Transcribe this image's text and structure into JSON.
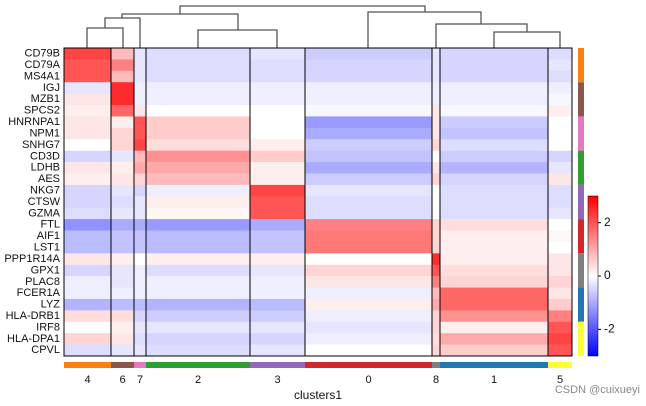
{
  "chart_data": {
    "type": "heatmap",
    "xlabel": "clusters1",
    "watermark": "CSDN @cuixueyi",
    "categories": [
      "4",
      "6",
      "7",
      "2",
      "3",
      "0",
      "8",
      "1",
      "5"
    ],
    "category_colors": [
      "#ff7f0e",
      "#8c564b",
      "#e377c2",
      "#2ca02c",
      "#9467bd",
      "#d62728",
      "#7f7f7f",
      "#1f77b4",
      "#ffff33"
    ],
    "cell_counts": [
      47,
      23,
      12,
      104,
      55,
      127,
      8,
      108,
      24
    ],
    "rows": [
      "CD79B",
      "CD79A",
      "MS4A1",
      "IGJ",
      "MZB1",
      "SPCS2",
      "HNRNPA1",
      "NPM1",
      "SNHG7",
      "CD3D",
      "LDHB",
      "AES",
      "NKG7",
      "CTSW",
      "GZMA",
      "FTL",
      "AIF1",
      "LST1",
      "PPP1R14A",
      "GPX1",
      "PLAC8",
      "FCER1A",
      "LYZ",
      "HLA-DRB1",
      "IRF8",
      "HLA-DPA1",
      "CPVL"
    ],
    "values": [
      [
        2.2,
        0.8,
        -0.3,
        -0.4,
        -0.3,
        -0.6,
        -0.3,
        -0.5,
        -0.4
      ],
      [
        2.0,
        1.5,
        -0.3,
        -0.4,
        -0.4,
        -0.5,
        -0.3,
        -0.5,
        -0.3
      ],
      [
        2.0,
        0.8,
        -0.3,
        -0.4,
        -0.4,
        -0.5,
        -0.3,
        -0.5,
        -0.4
      ],
      [
        -0.3,
        2.5,
        -0.2,
        -0.2,
        -0.2,
        -0.2,
        -0.2,
        -0.2,
        -0.2
      ],
      [
        0.3,
        2.5,
        -0.2,
        -0.2,
        -0.2,
        -0.2,
        -0.2,
        -0.2,
        -0.1
      ],
      [
        0.2,
        1.8,
        0.3,
        0,
        0,
        -0.1,
        0.3,
        -0.1,
        0.2
      ],
      [
        0.3,
        0.2,
        2.0,
        0.6,
        0,
        -1.2,
        0.3,
        -0.6,
        0
      ],
      [
        0.3,
        0.5,
        2.0,
        0.6,
        0,
        -1.0,
        0.3,
        -0.7,
        0
      ],
      [
        0,
        0.5,
        2.2,
        0.4,
        0.2,
        -0.6,
        0.5,
        -0.4,
        0
      ],
      [
        -0.5,
        -0.3,
        0.8,
        1.3,
        0.6,
        -0.7,
        0,
        -0.6,
        -0.5
      ],
      [
        0.3,
        0.2,
        1.0,
        1.0,
        0.2,
        -1.0,
        0.3,
        -0.9,
        -0.3
      ],
      [
        0.2,
        0.3,
        0.5,
        0.8,
        0.2,
        -0.6,
        0.5,
        -0.5,
        0.3
      ],
      [
        -0.5,
        -0.3,
        -0.5,
        -0.2,
        2.2,
        -0.3,
        0,
        -0.4,
        -0.4
      ],
      [
        -0.5,
        -0.4,
        -0.3,
        0.2,
        2.0,
        -0.4,
        0,
        -0.4,
        -0.4
      ],
      [
        -0.4,
        -0.3,
        -0.3,
        0.1,
        2.0,
        -0.4,
        0,
        -0.4,
        -0.3
      ],
      [
        -1.3,
        -1.0,
        -1.0,
        -1.2,
        -1.0,
        1.5,
        0.5,
        0.4,
        0
      ],
      [
        -0.8,
        -0.7,
        -0.7,
        -0.8,
        -0.7,
        1.6,
        0.5,
        0.2,
        0.1
      ],
      [
        -0.8,
        -0.7,
        -0.7,
        -0.8,
        -0.7,
        1.6,
        0.5,
        0.2,
        0
      ],
      [
        0.3,
        0.2,
        0,
        0.2,
        0.2,
        0,
        2.5,
        0.2,
        0.3
      ],
      [
        -0.5,
        -0.3,
        -0.2,
        -0.4,
        -0.3,
        0.5,
        2.0,
        0.4,
        0.3
      ],
      [
        -0.2,
        -0.3,
        -0.2,
        -0.2,
        -0.2,
        0.3,
        1.5,
        0.5,
        0.5
      ],
      [
        -0.2,
        -0.2,
        -0.2,
        -0.2,
        -0.2,
        -0.2,
        0.8,
        1.8,
        0.3
      ],
      [
        -0.9,
        -0.8,
        -0.8,
        -0.9,
        -0.8,
        0.2,
        1.0,
        1.8,
        0.6
      ],
      [
        0.4,
        0.4,
        -0.5,
        -0.6,
        -0.6,
        -0.2,
        0.5,
        1.3,
        1.5
      ],
      [
        0,
        0.2,
        -0.3,
        -0.3,
        -0.3,
        -0.3,
        0.5,
        0.2,
        2.0
      ],
      [
        0.5,
        0.3,
        -0.4,
        -0.5,
        -0.5,
        -0.2,
        0.4,
        1.0,
        2.2
      ],
      [
        -0.4,
        -0.3,
        -0.3,
        -0.4,
        -0.3,
        0,
        0.5,
        0.6,
        2.0
      ]
    ],
    "colorbar_lim": [
      -3,
      3
    ],
    "colorbar_ticks": [
      -2,
      0,
      2
    ]
  }
}
